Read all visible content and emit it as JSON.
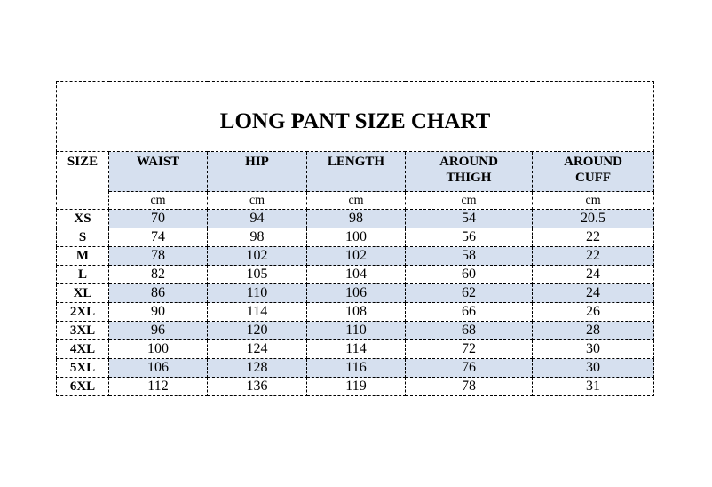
{
  "title": "LONG PANT SIZE CHART",
  "headers": [
    "SIZE",
    "WAIST",
    "HIP",
    "LENGTH",
    "AROUND THIGH",
    "AROUND CUFF"
  ],
  "unit": "cm",
  "shade_color": "#d6e0ef",
  "rows": [
    {
      "size": "XS",
      "values": [
        "70",
        "94",
        "98",
        "54",
        "20.5"
      ]
    },
    {
      "size": "S",
      "values": [
        "74",
        "98",
        "100",
        "56",
        "22"
      ]
    },
    {
      "size": "M",
      "values": [
        "78",
        "102",
        "102",
        "58",
        "22"
      ]
    },
    {
      "size": "L",
      "values": [
        "82",
        "105",
        "104",
        "60",
        "24"
      ]
    },
    {
      "size": "XL",
      "values": [
        "86",
        "110",
        "106",
        "62",
        "24"
      ]
    },
    {
      "size": "2XL",
      "values": [
        "90",
        "114",
        "108",
        "66",
        "26"
      ]
    },
    {
      "size": "3XL",
      "values": [
        "96",
        "120",
        "110",
        "68",
        "28"
      ]
    },
    {
      "size": "4XL",
      "values": [
        "100",
        "124",
        "114",
        "72",
        "30"
      ]
    },
    {
      "size": "5XL",
      "values": [
        "106",
        "128",
        "116",
        "76",
        "30"
      ]
    },
    {
      "size": "6XL",
      "values": [
        "112",
        "136",
        "119",
        "78",
        "31"
      ]
    }
  ]
}
